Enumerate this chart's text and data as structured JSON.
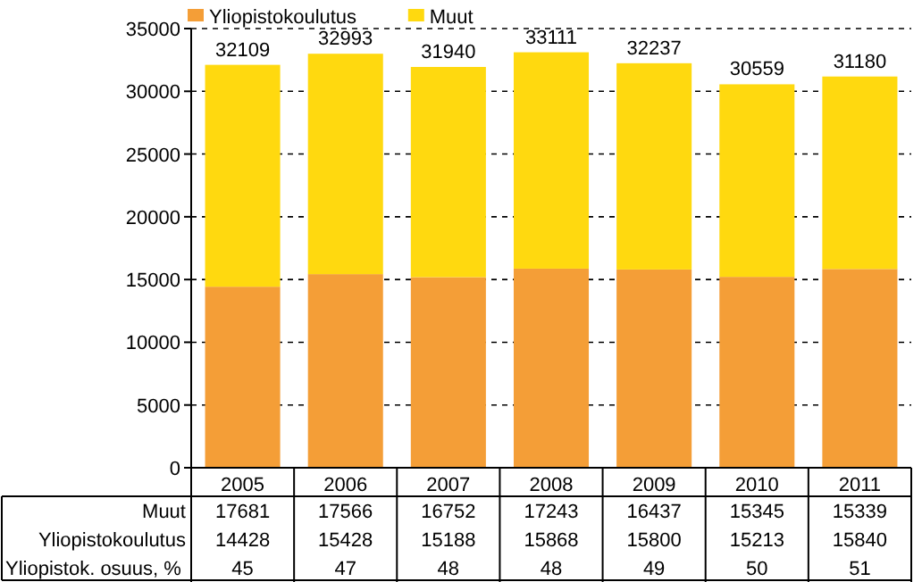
{
  "chart_data": {
    "type": "bar",
    "stacked": true,
    "categories": [
      "2005",
      "2006",
      "2007",
      "2008",
      "2009",
      "2010",
      "2011"
    ],
    "series": [
      {
        "name": "Yliopistokoulutus",
        "color": "#f49e37",
        "values": [
          14428,
          15428,
          15188,
          15868,
          15800,
          15213,
          15840
        ]
      },
      {
        "name": "Muut",
        "color": "#ffd90f",
        "values": [
          17681,
          17566,
          16752,
          17243,
          16437,
          15345,
          15339
        ]
      }
    ],
    "data_labels": true,
    "totals": [
      "32109",
      "32993",
      "31940",
      "33111",
      "32237",
      "30559",
      "31180"
    ],
    "ylim": [
      0,
      35000
    ],
    "yticks": [
      0,
      5000,
      10000,
      15000,
      20000,
      25000,
      30000,
      35000
    ],
    "grid": "y",
    "legend": "top left",
    "annotations": [
      "Yliopistok. osuus, %",
      "45",
      "47",
      "48",
      "48",
      "49",
      "50",
      "51"
    ]
  }
}
